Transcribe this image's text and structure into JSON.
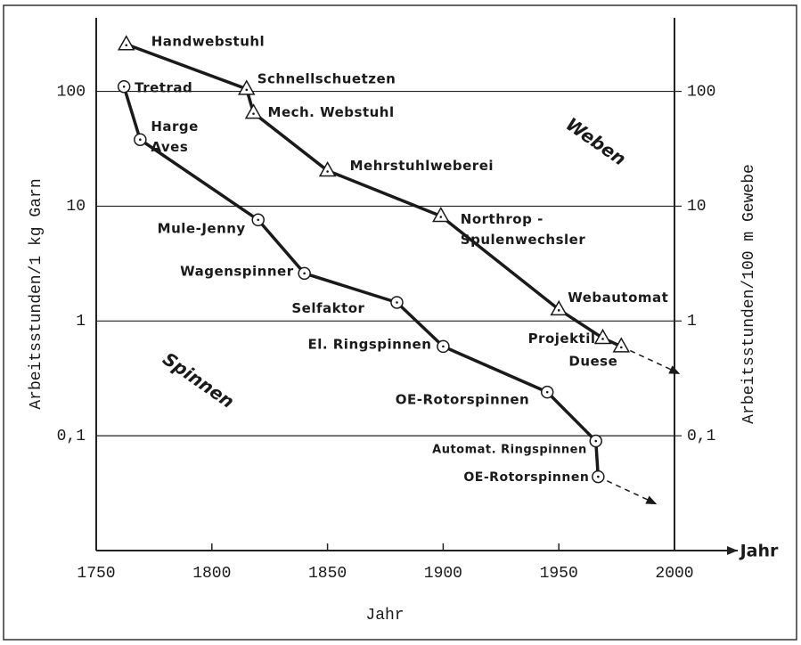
{
  "chart_data": {
    "type": "line",
    "log_y": true,
    "xlabel": "Jahr",
    "xarrow_label": "Jahr",
    "ylabel": "Arbeitsstunden/1 kg Garn",
    "y2label": "Arbeitsstunden/100 m Gewebe",
    "xlim": [
      1750,
      2000
    ],
    "xticks": [
      1750,
      1800,
      1850,
      1900,
      1950,
      2000
    ],
    "ylim": [
      0.01,
      400
    ],
    "yticks": [
      100,
      10,
      1,
      {
        "value": 0.1,
        "label": "0,1"
      }
    ],
    "y2lim": [
      0.01,
      400
    ],
    "y2ticks": [
      100,
      10,
      1,
      {
        "value": 0.1,
        "label": "0,1"
      }
    ],
    "grid": true,
    "series": [
      {
        "name": "Spinnen",
        "marker": "circle",
        "color": "#1a1a1a",
        "x": [
          1762,
          1769,
          1820,
          1840,
          1880,
          1900,
          1945,
          1966,
          1967
        ],
        "values": [
          110,
          38,
          7.6,
          2.6,
          1.45,
          0.6,
          0.24,
          0.09,
          0.044
        ],
        "point_labels": [
          [
            "Tretrad"
          ],
          [
            "Harge",
            "Aves"
          ],
          [
            "Mule-Jenny"
          ],
          [
            "Wagenspinner"
          ],
          [
            "Selfaktor"
          ],
          [
            "El. Ringspinnen"
          ],
          [
            "OE-Rotorspinnen"
          ],
          [
            "Automat. Ringspinnen"
          ],
          [
            "OE-Rotorspinnen"
          ]
        ]
      },
      {
        "name": "Weben",
        "marker": "triangle",
        "color": "#1a1a1a",
        "x": [
          1763,
          1815,
          1818,
          1850,
          1899,
          1950,
          1969,
          1977
        ],
        "values": [
          257,
          105,
          65,
          20.4,
          8.2,
          1.26,
          0.71,
          0.6
        ],
        "point_labels": [
          [
            "Handwebstuhl"
          ],
          [
            "Schnellschuetzen"
          ],
          [
            "Mech. Webstuhl"
          ],
          [
            "Mehrstuhlweberei"
          ],
          [
            "Northrop -",
            "Spulenwechsler"
          ],
          [
            "Webautomat"
          ],
          [
            "Projektil"
          ],
          [
            "Duese"
          ]
        ]
      }
    ]
  }
}
